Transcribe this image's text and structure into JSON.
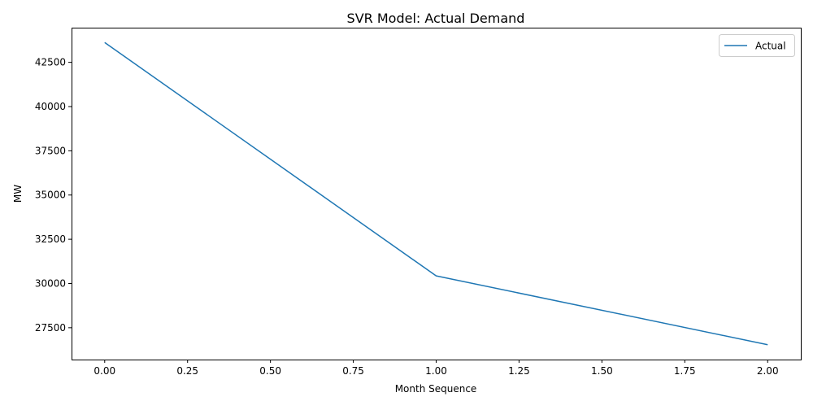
{
  "chart_data": {
    "type": "line",
    "title": "SVR Model: Actual Demand",
    "xlabel": "Month Sequence",
    "ylabel": "MW",
    "x": [
      0,
      1,
      2
    ],
    "series": [
      {
        "name": "Actual",
        "color": "#1f77b4",
        "values": [
          43620,
          30430,
          26540
        ]
      }
    ],
    "xlim": [
      -0.1,
      2.1
    ],
    "ylim": [
      25700,
      44460
    ],
    "xticks": [
      0.0,
      0.25,
      0.5,
      0.75,
      1.0,
      1.25,
      1.5,
      1.75,
      2.0
    ],
    "xtick_labels": [
      "0.00",
      "0.25",
      "0.50",
      "0.75",
      "1.00",
      "1.25",
      "1.50",
      "1.75",
      "2.00"
    ],
    "yticks": [
      27500,
      30000,
      32500,
      35000,
      37500,
      40000,
      42500
    ],
    "ytick_labels": [
      "27500",
      "30000",
      "32500",
      "35000",
      "37500",
      "40000",
      "42500"
    ],
    "grid": false,
    "legend_position": "top-right"
  }
}
